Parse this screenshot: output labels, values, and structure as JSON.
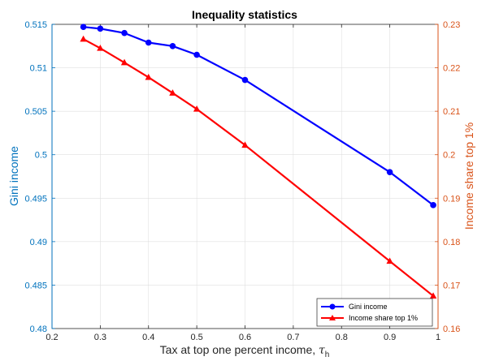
{
  "chart_data": {
    "type": "line",
    "title": "Inequality statistics",
    "xlabel": "Tax at top one percent income,",
    "xlabel_symbol": "τ",
    "xlabel_subscript": "h",
    "ylabel_left": "Gini income",
    "ylabel_right": "Income share top 1%",
    "xlim": [
      0.2,
      1.0
    ],
    "ylim_left": [
      0.48,
      0.515
    ],
    "ylim_right": [
      0.16,
      0.23
    ],
    "x_ticks": [
      "0.2",
      "0.3",
      "0.4",
      "0.5",
      "0.6",
      "0.7",
      "0.8",
      "0.9",
      "1"
    ],
    "y_left_ticks": [
      "0.48",
      "0.485",
      "0.49",
      "0.495",
      "0.5",
      "0.505",
      "0.51",
      "0.515"
    ],
    "y_right_ticks": [
      "0.16",
      "0.17",
      "0.18",
      "0.19",
      "0.2",
      "0.21",
      "0.22",
      "0.23"
    ],
    "grid": true,
    "legend_position": "bottom-right",
    "series": [
      {
        "name": "Gini income",
        "axis": "left",
        "color": "#0000FF",
        "marker": "circle",
        "x": [
          0.265,
          0.3,
          0.35,
          0.4,
          0.45,
          0.5,
          0.6,
          0.9,
          0.99
        ],
        "values": [
          0.5147,
          0.5145,
          0.514,
          0.5129,
          0.5125,
          0.5115,
          0.5086,
          0.498,
          0.4942
        ]
      },
      {
        "name": "Income share top 1%",
        "axis": "right",
        "color": "#FF0000",
        "marker": "triangle",
        "x": [
          0.265,
          0.3,
          0.35,
          0.4,
          0.45,
          0.5,
          0.6,
          0.9,
          0.99
        ],
        "values": [
          0.2266,
          0.2245,
          0.2212,
          0.2178,
          0.2142,
          0.2105,
          0.2022,
          0.1755,
          0.1675
        ]
      }
    ],
    "colors": {
      "left_axis": "#0072BD",
      "right_axis": "#D95319"
    }
  }
}
